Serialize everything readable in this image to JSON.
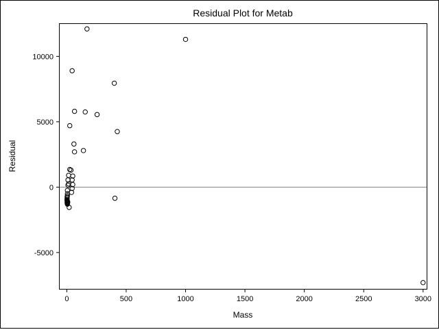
{
  "chart_data": {
    "type": "scatter",
    "title": "Residual Plot for Metab",
    "xlabel": "Mass",
    "ylabel": "Residual",
    "xlim": [
      -60,
      3030
    ],
    "ylim": [
      -7780,
      12480
    ],
    "x_ticks": [
      0,
      500,
      1000,
      1500,
      2000,
      2500,
      3000
    ],
    "x_tick_labels": [
      "0",
      "500",
      "1000",
      "1500",
      "2000",
      "2500",
      "3000"
    ],
    "y_ticks": [
      -5000,
      0,
      5000,
      10000
    ],
    "y_tick_labels": [
      "-5000",
      "0",
      "5000",
      "10000"
    ],
    "reference_line": {
      "y": 0,
      "color": "#808080"
    },
    "grid": false,
    "legend": "none",
    "marker": "open-circle",
    "series": [
      {
        "x": [
          170,
          1000,
          45,
          400,
          65,
          155,
          255,
          25,
          425,
          60,
          140,
          65,
          25,
          35,
          15,
          50,
          10,
          45,
          15,
          50,
          10,
          45,
          5,
          40,
          5,
          5,
          3,
          3,
          2,
          2,
          4,
          6,
          8,
          3,
          4,
          3,
          5,
          20,
          405,
          3000
        ],
        "y": [
          12100,
          11300,
          8900,
          7950,
          5800,
          5750,
          5550,
          4700,
          4250,
          3300,
          2800,
          2700,
          1350,
          1300,
          900,
          850,
          550,
          550,
          250,
          200,
          150,
          -100,
          -250,
          -400,
          -500,
          -650,
          -750,
          -850,
          -950,
          -1000,
          -1050,
          -1100,
          -1150,
          -1200,
          -1250,
          -1150,
          -1300,
          -1550,
          -850,
          -7300
        ]
      }
    ]
  }
}
